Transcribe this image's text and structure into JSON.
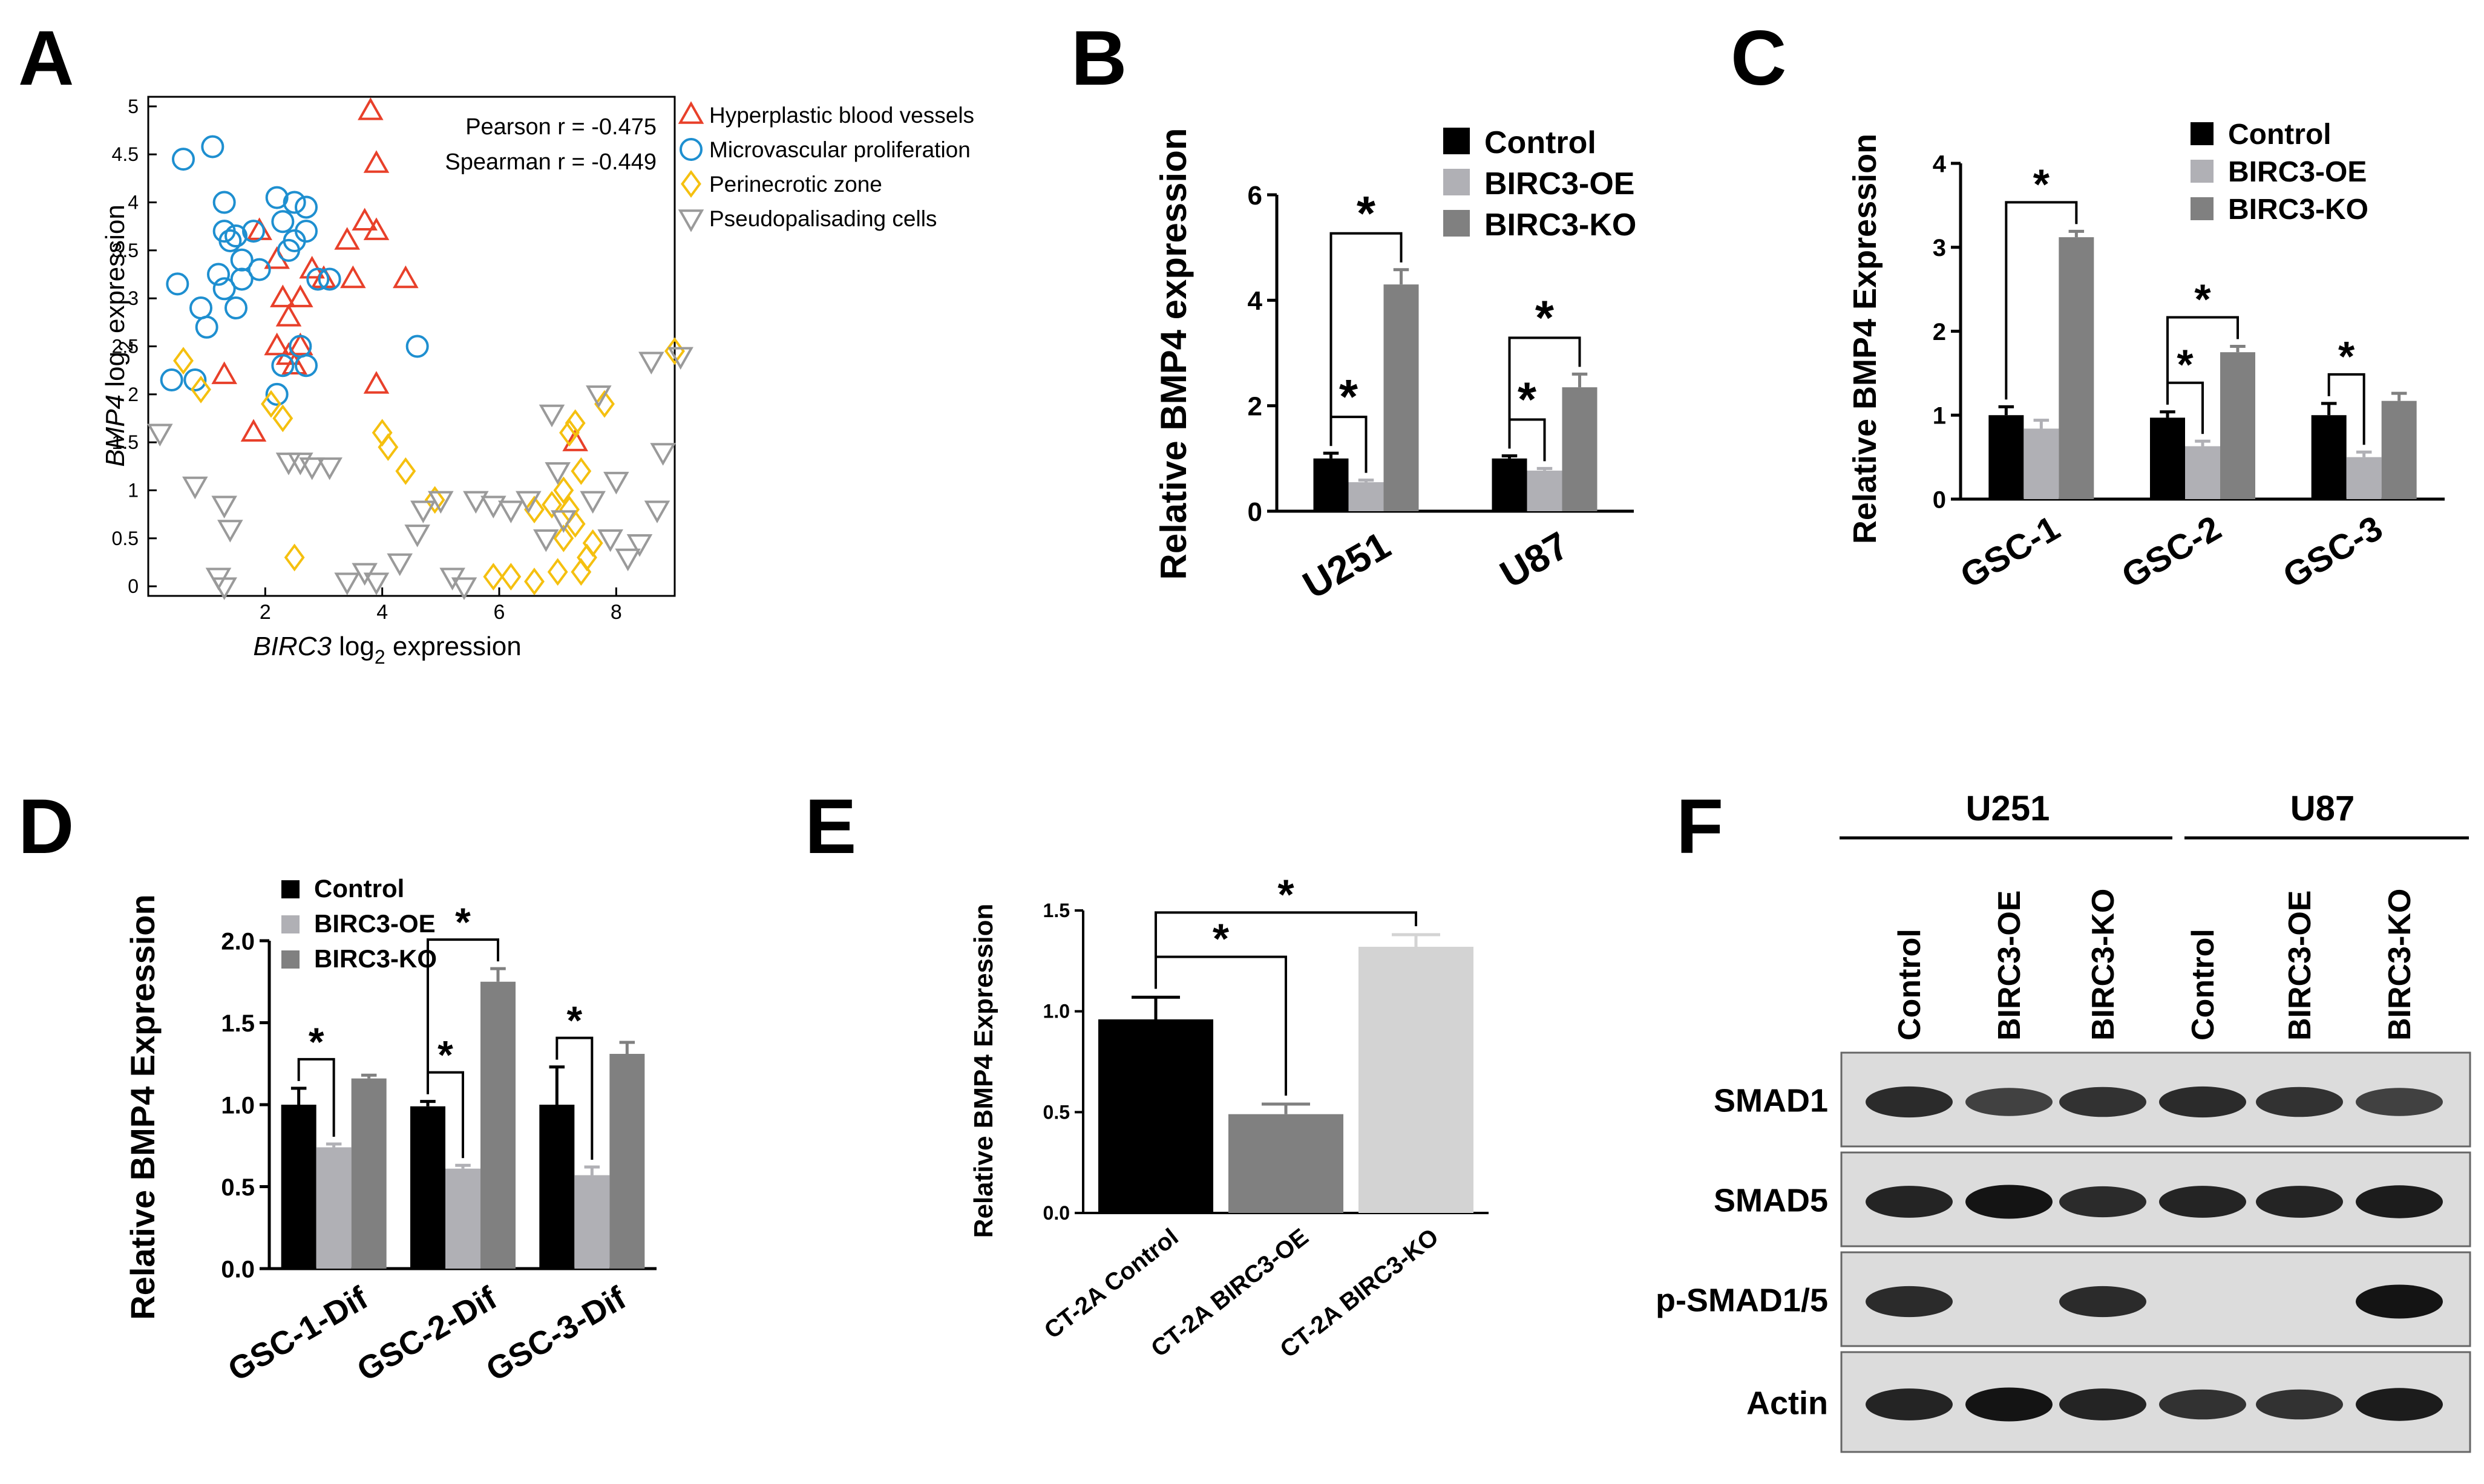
{
  "figure": {
    "panel_letters": [
      "A",
      "B",
      "C",
      "D",
      "E",
      "F"
    ]
  },
  "panels": {
    "A": {
      "xlabel_italic": "BIRC3",
      "xlabel_rest": " log",
      "xlabel_sub": "2",
      "xlabel_end": " expression",
      "ylabel_italic": "BMP4",
      "ylabel_rest": " log",
      "ylabel_sub": "2",
      "ylabel_end": " expression",
      "annotations": [
        "Pearson r = -0.475",
        "Spearman r = -0.449"
      ]
    },
    "F": {
      "groups": [
        "U251",
        "U87"
      ],
      "lanes": [
        "Control",
        "BIRC3-OE",
        "BIRC3-KO",
        "Control",
        "BIRC3-OE",
        "BIRC3-KO"
      ],
      "rows": [
        {
          "label": "SMAD1",
          "intensity": [
            0.85,
            0.7,
            0.8,
            0.85,
            0.8,
            0.7
          ]
        },
        {
          "label": "SMAD5",
          "intensity": [
            0.9,
            1.0,
            0.85,
            0.9,
            0.9,
            0.95
          ]
        },
        {
          "label": "p-SMAD1/5",
          "intensity": [
            0.85,
            0.0,
            0.85,
            0.0,
            0.0,
            1.0
          ]
        },
        {
          "label": "Actin",
          "intensity": [
            0.9,
            1.0,
            0.9,
            0.8,
            0.8,
            0.95
          ]
        }
      ]
    }
  },
  "chart_data": [
    {
      "panel": "A",
      "type": "scatter",
      "xlim": [
        0,
        9
      ],
      "ylim": [
        -0.1,
        5.1
      ],
      "xticks": [
        2,
        4,
        6,
        8
      ],
      "yticks": [
        0,
        0.5,
        1,
        1.5,
        2,
        2.5,
        3,
        3.5,
        4,
        4.5,
        5
      ],
      "ytick_labels": [
        "0",
        "0.5",
        "1",
        "1.5",
        "2",
        "2.5",
        "3",
        "3.5",
        "4",
        "4.5",
        "5"
      ],
      "legend_position": "top-right",
      "series": [
        {
          "name": "Hyperplastic blood vessels",
          "marker": "triangle-up",
          "color": "#e8402a",
          "points": [
            [
              3.8,
              4.95
            ],
            [
              3.9,
              4.4
            ],
            [
              3.7,
              3.8
            ],
            [
              3.9,
              3.7
            ],
            [
              3.4,
              3.6
            ],
            [
              1.9,
              3.7
            ],
            [
              2.2,
              3.4
            ],
            [
              2.6,
              3.0
            ],
            [
              2.8,
              3.3
            ],
            [
              3.0,
              3.2
            ],
            [
              3.5,
              3.2
            ],
            [
              4.4,
              3.2
            ],
            [
              2.3,
              3.0
            ],
            [
              2.4,
              2.8
            ],
            [
              2.2,
              2.5
            ],
            [
              2.4,
              2.4
            ],
            [
              2.5,
              2.3
            ],
            [
              3.9,
              2.1
            ],
            [
              1.3,
              2.2
            ],
            [
              1.8,
              1.6
            ],
            [
              3.0,
              3.2
            ],
            [
              7.3,
              1.5
            ],
            [
              2.6,
              2.5
            ]
          ]
        },
        {
          "name": "Microvascular proliferation",
          "marker": "circle",
          "color": "#1e8fd0",
          "points": [
            [
              0.6,
              4.45
            ],
            [
              1.1,
              4.58
            ],
            [
              1.3,
              4.0
            ],
            [
              1.5,
              3.65
            ],
            [
              1.3,
              3.7
            ],
            [
              1.4,
              3.6
            ],
            [
              1.8,
              3.7
            ],
            [
              2.2,
              4.05
            ],
            [
              2.5,
              4.0
            ],
            [
              2.7,
              3.95
            ],
            [
              2.3,
              3.8
            ],
            [
              2.5,
              3.6
            ],
            [
              2.7,
              3.7
            ],
            [
              2.4,
              3.5
            ],
            [
              1.6,
              3.4
            ],
            [
              1.2,
              3.25
            ],
            [
              1.9,
              3.3
            ],
            [
              0.5,
              3.15
            ],
            [
              1.3,
              3.1
            ],
            [
              1.6,
              3.2
            ],
            [
              2.9,
              3.2
            ],
            [
              3.1,
              3.2
            ],
            [
              0.9,
              2.9
            ],
            [
              1.5,
              2.9
            ],
            [
              1.0,
              2.7
            ],
            [
              2.6,
              2.5
            ],
            [
              2.3,
              2.3
            ],
            [
              2.7,
              2.3
            ],
            [
              0.4,
              2.15
            ],
            [
              0.8,
              2.15
            ],
            [
              2.2,
              2.0
            ],
            [
              4.6,
              2.5
            ]
          ]
        },
        {
          "name": "Perinecrotic zone",
          "marker": "diamond",
          "color": "#f5c00f",
          "points": [
            [
              0.6,
              2.35
            ],
            [
              0.9,
              2.05
            ],
            [
              2.1,
              1.9
            ],
            [
              2.3,
              1.75
            ],
            [
              4.0,
              1.6
            ],
            [
              4.1,
              1.45
            ],
            [
              4.4,
              1.2
            ],
            [
              4.9,
              0.9
            ],
            [
              2.5,
              0.3
            ],
            [
              5.9,
              0.1
            ],
            [
              6.2,
              0.1
            ],
            [
              6.6,
              0.05
            ],
            [
              7.0,
              0.15
            ],
            [
              6.6,
              0.8
            ],
            [
              6.9,
              0.85
            ],
            [
              7.2,
              1.6
            ],
            [
              7.3,
              1.7
            ],
            [
              7.8,
              1.9
            ],
            [
              7.4,
              1.2
            ],
            [
              7.1,
              1.0
            ],
            [
              7.2,
              0.8
            ],
            [
              7.3,
              0.65
            ],
            [
              7.1,
              0.5
            ],
            [
              7.6,
              0.45
            ],
            [
              7.5,
              0.3
            ],
            [
              7.4,
              0.15
            ],
            [
              9.0,
              2.45
            ]
          ]
        },
        {
          "name": "Pseudopalisading cells",
          "marker": "triangle-down",
          "color": "#9a9a9a",
          "points": [
            [
              0.2,
              1.6
            ],
            [
              0.8,
              1.05
            ],
            [
              1.3,
              0.85
            ],
            [
              1.4,
              0.6
            ],
            [
              1.2,
              0.1
            ],
            [
              1.3,
              0.0
            ],
            [
              2.6,
              1.3
            ],
            [
              2.8,
              1.25
            ],
            [
              3.1,
              1.25
            ],
            [
              2.4,
              1.3
            ],
            [
              3.4,
              0.05
            ],
            [
              3.9,
              0.05
            ],
            [
              3.7,
              0.15
            ],
            [
              4.3,
              0.25
            ],
            [
              4.6,
              0.55
            ],
            [
              4.7,
              0.8
            ],
            [
              5.0,
              0.9
            ],
            [
              5.6,
              0.9
            ],
            [
              5.9,
              0.85
            ],
            [
              6.2,
              0.8
            ],
            [
              6.5,
              0.9
            ],
            [
              5.2,
              0.1
            ],
            [
              5.4,
              0.0
            ],
            [
              6.8,
              0.5
            ],
            [
              7.1,
              0.7
            ],
            [
              6.9,
              1.8
            ],
            [
              7.7,
              2.0
            ],
            [
              7.0,
              1.2
            ],
            [
              7.6,
              0.9
            ],
            [
              7.9,
              0.5
            ],
            [
              8.2,
              0.3
            ],
            [
              8.7,
              0.8
            ],
            [
              8.8,
              1.4
            ],
            [
              8.4,
              0.45
            ],
            [
              8.6,
              2.35
            ],
            [
              9.1,
              2.4
            ],
            [
              8.0,
              1.1
            ]
          ]
        }
      ]
    },
    {
      "panel": "B",
      "type": "bar",
      "ylabel": "Relative BMP4 expression",
      "ylim": [
        0,
        6
      ],
      "yticks": [
        0,
        2,
        4,
        6
      ],
      "categories": [
        "U251",
        "U87"
      ],
      "legend_position": "top-right",
      "series": [
        {
          "name": "Control",
          "color": "#000000",
          "values": [
            1.0,
            1.0
          ],
          "errors": [
            0.1,
            0.05
          ]
        },
        {
          "name": "BIRC3-OE",
          "color": "#b0b0b5",
          "values": [
            0.55,
            0.77
          ],
          "errors": [
            0.04,
            0.04
          ]
        },
        {
          "name": "BIRC3-KO",
          "color": "#808080",
          "values": [
            4.3,
            2.35
          ],
          "errors": [
            0.28,
            0.25
          ]
        }
      ],
      "significance": [
        {
          "cat": 0,
          "from": 0,
          "to": 1,
          "label": "*"
        },
        {
          "cat": 0,
          "from": 0,
          "to": 2,
          "label": "*"
        },
        {
          "cat": 1,
          "from": 0,
          "to": 1,
          "label": "*"
        },
        {
          "cat": 1,
          "from": 0,
          "to": 2,
          "label": "*"
        }
      ]
    },
    {
      "panel": "C",
      "type": "bar",
      "ylabel": "Relative BMP4 Expression",
      "ylim": [
        0,
        4
      ],
      "yticks": [
        0,
        1,
        2,
        3,
        4
      ],
      "categories": [
        "GSC-1",
        "GSC-2",
        "GSC-3"
      ],
      "legend_position": "top-right",
      "series": [
        {
          "name": "Control",
          "color": "#000000",
          "values": [
            1.0,
            0.97,
            1.0
          ],
          "errors": [
            0.1,
            0.07,
            0.14
          ]
        },
        {
          "name": "BIRC3-OE",
          "color": "#b0b0b5",
          "values": [
            0.84,
            0.63,
            0.5
          ],
          "errors": [
            0.1,
            0.06,
            0.06
          ]
        },
        {
          "name": "BIRC3-KO",
          "color": "#808080",
          "values": [
            3.12,
            1.75,
            1.17
          ],
          "errors": [
            0.07,
            0.07,
            0.09
          ]
        }
      ],
      "significance": [
        {
          "cat": 0,
          "from": 0,
          "to": 2,
          "label": "*"
        },
        {
          "cat": 1,
          "from": 0,
          "to": 1,
          "label": "*"
        },
        {
          "cat": 1,
          "from": 0,
          "to": 2,
          "label": "*"
        },
        {
          "cat": 2,
          "from": 0,
          "to": 1,
          "label": "*"
        }
      ]
    },
    {
      "panel": "D",
      "type": "bar",
      "ylabel": "Relative BMP4 Expression",
      "ylim": [
        0,
        2.0
      ],
      "yticks": [
        0,
        0.5,
        1.0,
        1.5,
        2.0
      ],
      "ytick_labels": [
        "0.0",
        "0.5",
        "1.0",
        "1.5",
        "2.0"
      ],
      "categories": [
        "GSC-1-Dif",
        "GSC-2-Dif",
        "GSC-3-Dif"
      ],
      "legend_position": "top-left",
      "series": [
        {
          "name": "Control",
          "color": "#000000",
          "values": [
            1.0,
            0.99,
            1.0
          ],
          "errors": [
            0.1,
            0.03,
            0.23
          ]
        },
        {
          "name": "BIRC3-OE",
          "color": "#b0b0b5",
          "values": [
            0.74,
            0.61,
            0.57
          ],
          "errors": [
            0.02,
            0.02,
            0.05
          ]
        },
        {
          "name": "BIRC3-KO",
          "color": "#808080",
          "values": [
            1.16,
            1.75,
            1.31
          ],
          "errors": [
            0.02,
            0.08,
            0.07
          ]
        }
      ],
      "significance": [
        {
          "cat": 0,
          "from": 0,
          "to": 1,
          "label": "*"
        },
        {
          "cat": 1,
          "from": 0,
          "to": 1,
          "label": "*"
        },
        {
          "cat": 1,
          "from": 0,
          "to": 2,
          "label": "*"
        },
        {
          "cat": 2,
          "from": 0,
          "to": 1,
          "label": "*"
        }
      ]
    },
    {
      "panel": "E",
      "type": "bar",
      "ylabel": "Relative BMP4 Expression",
      "ylim": [
        0,
        1.5
      ],
      "yticks": [
        0,
        0.5,
        1.0,
        1.5
      ],
      "ytick_labels": [
        "0.0",
        "0.5",
        "1.0",
        "1.5"
      ],
      "categories": [
        "CT-2A Control",
        "CT-2A BIRC3-OE",
        "CT-2A BIRC3-KO"
      ],
      "colors": [
        "#000000",
        "#808080",
        "#d3d3d3"
      ],
      "values": [
        0.96,
        0.49,
        1.32
      ],
      "errors": [
        0.11,
        0.05,
        0.06
      ],
      "significance": [
        {
          "from": 0,
          "to": 1,
          "label": "*"
        },
        {
          "from": 0,
          "to": 2,
          "label": "*"
        }
      ]
    }
  ]
}
